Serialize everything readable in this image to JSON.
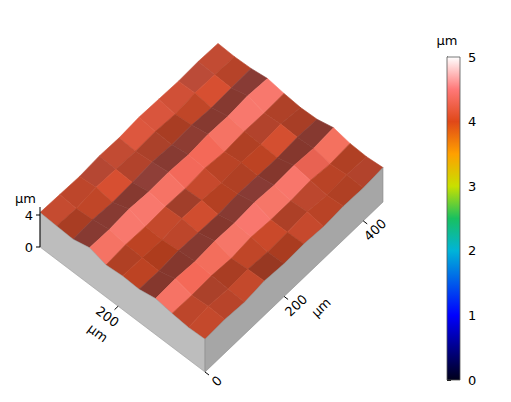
{
  "chart_data": {
    "type": "surface",
    "x_label": "µm",
    "y_label": "µm",
    "z_label": "µm",
    "x": [
      0,
      50,
      100,
      150,
      200,
      250,
      300,
      350,
      400,
      450
    ],
    "y": [
      0,
      38,
      76,
      114,
      152,
      190,
      228,
      266,
      304,
      342,
      380
    ],
    "z": [
      [
        4.1,
        4.2,
        4.0,
        4.3,
        4.1,
        4.2,
        4.0,
        4.2,
        4.1,
        4.3
      ],
      [
        4.0,
        4.3,
        4.1,
        4.2,
        4.0,
        4.1,
        4.3,
        4.0,
        4.2,
        4.1
      ],
      [
        4.2,
        4.1,
        4.2,
        4.0,
        4.3,
        4.1,
        4.1,
        4.3,
        4.0,
        4.2
      ],
      [
        4.5,
        4.6,
        4.4,
        4.6,
        4.5,
        4.7,
        4.5,
        4.6,
        4.4,
        4.6
      ],
      [
        4.1,
        4.0,
        4.2,
        4.1,
        4.0,
        4.2,
        4.1,
        4.0,
        4.2,
        4.1
      ],
      [
        4.2,
        4.1,
        4.0,
        4.3,
        4.2,
        4.0,
        4.2,
        4.1,
        4.3,
        4.0
      ],
      [
        4.0,
        4.2,
        4.1,
        4.2,
        4.1,
        4.3,
        4.0,
        4.2,
        4.1,
        4.2
      ],
      [
        4.6,
        4.5,
        4.7,
        4.5,
        4.6,
        4.4,
        4.6,
        4.5,
        4.7,
        4.5
      ],
      [
        4.1,
        4.2,
        4.0,
        4.1,
        4.3,
        4.1,
        4.2,
        4.0,
        4.1,
        4.2
      ],
      [
        4.2,
        4.0,
        4.3,
        4.2,
        4.1,
        4.2,
        4.0,
        4.3,
        4.2,
        4.1
      ],
      [
        4.3,
        4.2,
        4.1,
        4.3,
        4.2,
        4.4,
        4.3,
        4.2,
        4.3,
        4.2
      ]
    ],
    "xlim": [
      0,
      450
    ],
    "ylim": [
      0,
      380
    ],
    "zlim": [
      0,
      5
    ],
    "xticks": [
      0,
      200,
      400
    ],
    "yticks": [
      200
    ],
    "zticks": [
      0,
      4
    ],
    "colorbar": {
      "label": "µm",
      "range": [
        0,
        5
      ],
      "ticks": [
        0,
        1,
        2,
        3,
        4,
        5
      ]
    }
  }
}
